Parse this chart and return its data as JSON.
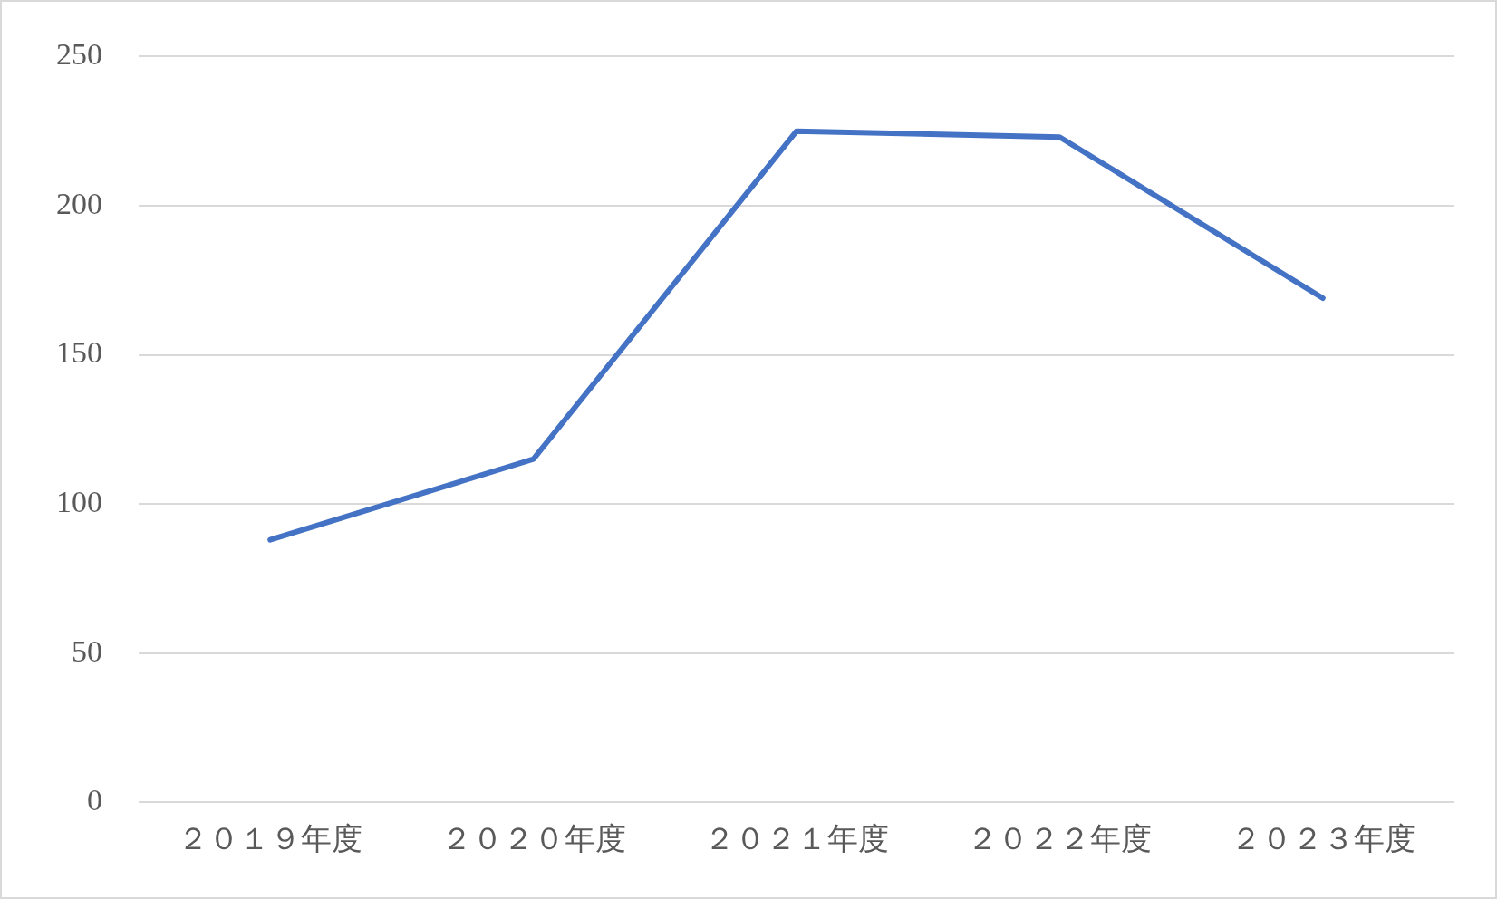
{
  "chart_data": {
    "type": "line",
    "categories": [
      "２０１９年度",
      "２０２０年度",
      "２０２１年度",
      "２０２２年度",
      "２０２３年度"
    ],
    "series": [
      {
        "color": "#4472c4",
        "values": [
          88,
          115,
          225,
          223,
          169
        ]
      }
    ],
    "ylim": [
      0,
      250
    ],
    "yticks": [
      0,
      50,
      100,
      150,
      200,
      250
    ],
    "grid": "y",
    "legend": false,
    "marker": "none",
    "line_style": "solid"
  }
}
